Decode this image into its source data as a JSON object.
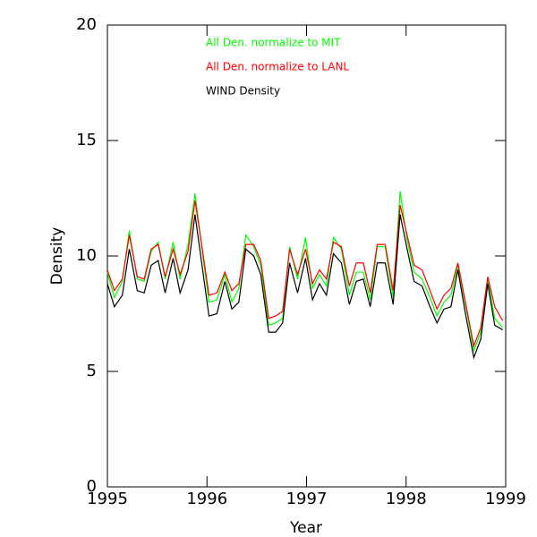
{
  "chart_data": {
    "type": "line",
    "x_label": "Year",
    "y_label": "Density",
    "x": [
      1995.0,
      1995.07,
      1995.15,
      1995.22,
      1995.3,
      1995.37,
      1995.44,
      1995.51,
      1995.58,
      1995.66,
      1995.73,
      1995.81,
      1995.88,
      1995.95,
      1996.02,
      1996.1,
      1996.18,
      1996.25,
      1996.32,
      1996.39,
      1996.47,
      1996.54,
      1996.62,
      1996.69,
      1996.76,
      1996.83,
      1996.91,
      1996.99,
      1997.06,
      1997.13,
      1997.2,
      1997.27,
      1997.35,
      1997.43,
      1997.5,
      1997.57,
      1997.64,
      1997.71,
      1997.79,
      1997.87,
      1997.94,
      1998.01,
      1998.08,
      1998.16,
      1998.24,
      1998.31,
      1998.38,
      1998.45,
      1998.52,
      1998.6,
      1998.68,
      1998.75,
      1998.82,
      1998.89,
      1998.97
    ],
    "series": [
      {
        "name": "All Den. normalize to MIT",
        "color": "#00ff00",
        "values": [
          9.3,
          8.2,
          8.9,
          11.1,
          9.0,
          8.9,
          10.2,
          10.6,
          9.0,
          10.6,
          9.0,
          10.5,
          12.7,
          10.3,
          8.0,
          8.1,
          9.2,
          8.0,
          8.6,
          10.9,
          10.4,
          9.6,
          7.0,
          7.1,
          7.3,
          10.4,
          9.0,
          10.8,
          8.6,
          9.2,
          8.7,
          10.8,
          10.3,
          8.3,
          9.3,
          9.3,
          8.1,
          10.4,
          10.4,
          8.2,
          12.8,
          10.7,
          9.3,
          9.0,
          8.2,
          7.4,
          8.0,
          8.3,
          9.6,
          7.8,
          5.9,
          6.7,
          9.0,
          7.3,
          6.9
        ]
      },
      {
        "name": "All Den. normalize to LANL",
        "color": "#ff0000",
        "values": [
          9.4,
          8.5,
          9.0,
          10.9,
          9.1,
          9.0,
          10.3,
          10.5,
          9.1,
          10.3,
          9.2,
          10.2,
          12.4,
          10.4,
          8.3,
          8.4,
          9.3,
          8.5,
          8.8,
          10.5,
          10.5,
          9.8,
          7.3,
          7.4,
          7.6,
          10.3,
          9.2,
          10.3,
          8.8,
          9.4,
          9.0,
          10.6,
          10.4,
          8.7,
          9.7,
          9.7,
          8.4,
          10.5,
          10.5,
          8.5,
          12.2,
          10.9,
          9.6,
          9.4,
          8.5,
          7.7,
          8.3,
          8.6,
          9.7,
          7.9,
          6.1,
          6.9,
          9.1,
          7.8,
          7.2
        ]
      },
      {
        "name": "WIND Density",
        "color": "#000000",
        "values": [
          8.8,
          7.8,
          8.3,
          10.3,
          8.5,
          8.4,
          9.6,
          9.8,
          8.4,
          9.9,
          8.4,
          9.4,
          11.8,
          9.6,
          7.4,
          7.5,
          8.9,
          7.7,
          8.0,
          10.3,
          10.0,
          9.2,
          6.7,
          6.7,
          7.1,
          9.7,
          8.4,
          9.9,
          8.1,
          8.8,
          8.3,
          10.1,
          9.7,
          7.9,
          8.9,
          9.0,
          7.8,
          9.7,
          9.7,
          7.9,
          11.8,
          10.3,
          8.9,
          8.7,
          7.8,
          7.1,
          7.7,
          7.8,
          9.4,
          7.4,
          5.6,
          6.4,
          8.8,
          7.0,
          6.8
        ]
      }
    ],
    "xlim": [
      1995,
      1999
    ],
    "xticks": [
      1995,
      1996,
      1997,
      1998,
      1999
    ],
    "ylim": [
      0,
      20
    ],
    "yticks": [
      0,
      5,
      10,
      15,
      20
    ],
    "grid": false,
    "legend": "top"
  }
}
